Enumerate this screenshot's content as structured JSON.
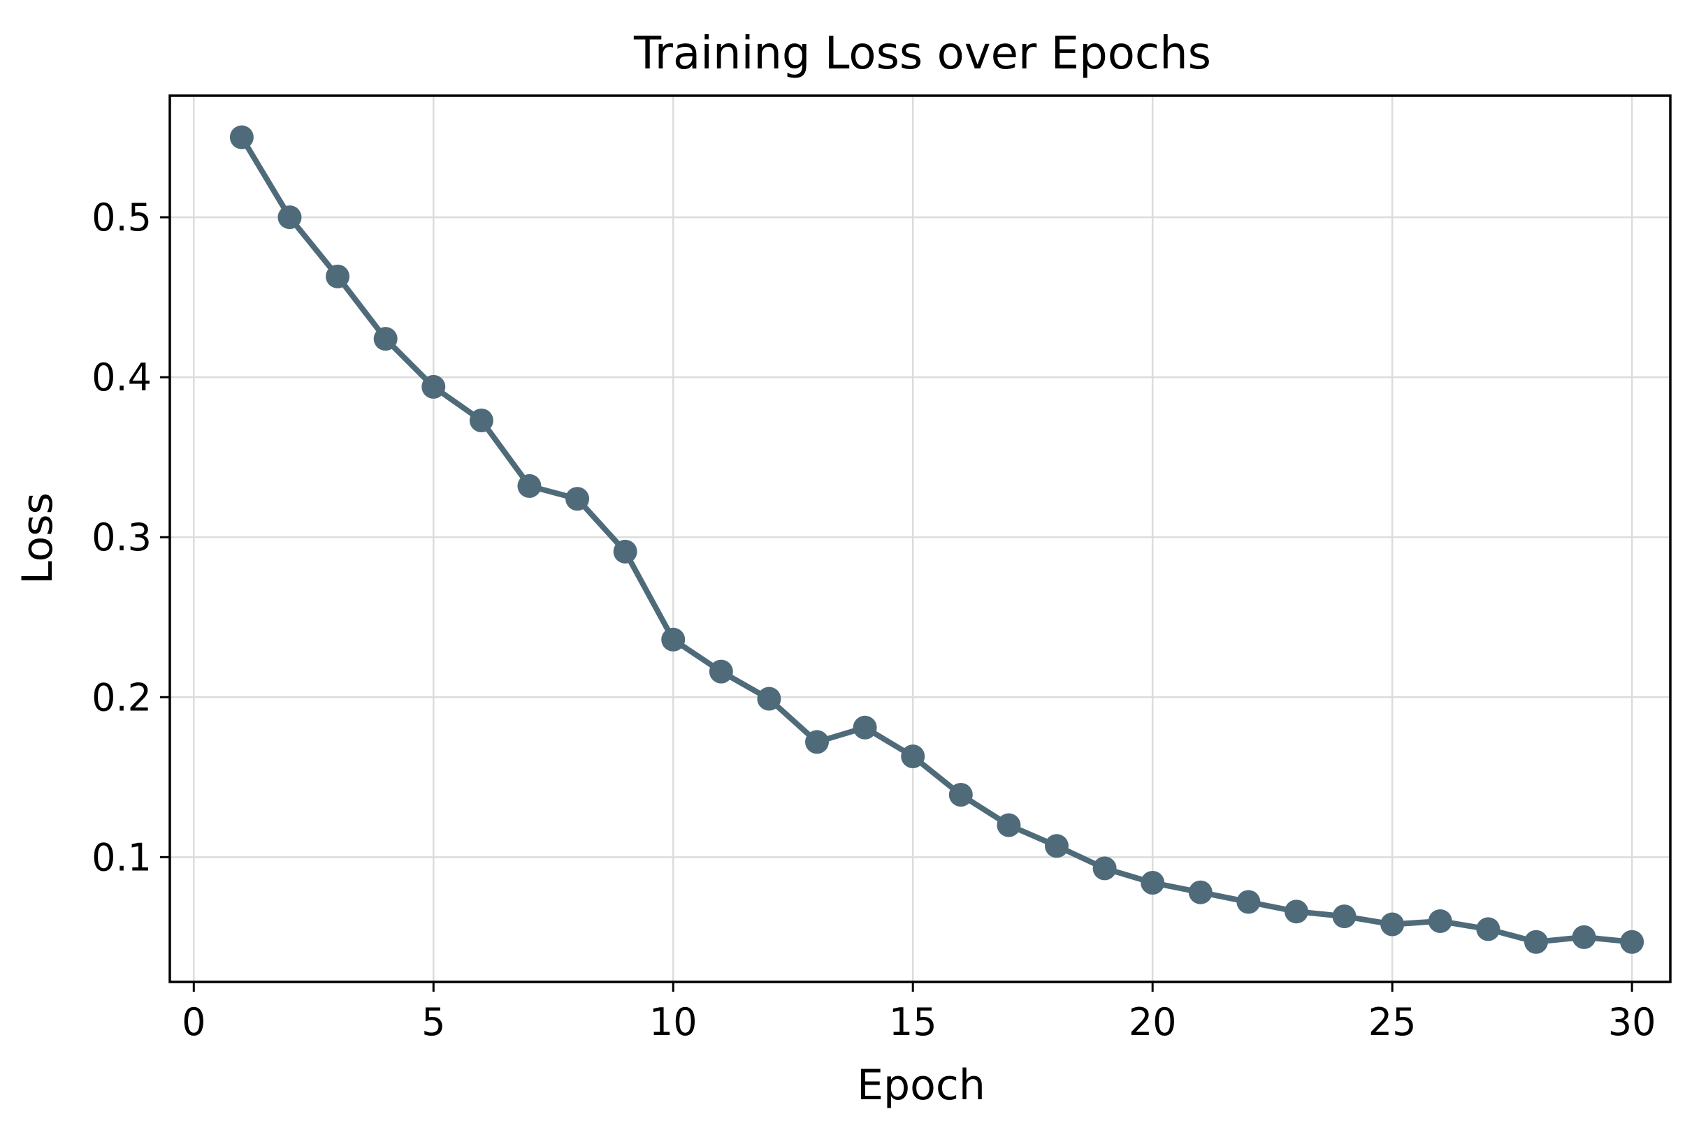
{
  "chart_data": {
    "type": "line",
    "title": "Training Loss over Epochs",
    "xlabel": "Epoch",
    "ylabel": "Loss",
    "xlim": [
      -0.5,
      30.8
    ],
    "ylim": [
      0.022,
      0.576
    ],
    "x_ticks": [
      0,
      5,
      10,
      15,
      20,
      25,
      30
    ],
    "x_tick_labels": [
      "0",
      "5",
      "10",
      "15",
      "20",
      "25",
      "30"
    ],
    "y_ticks": [
      0.1,
      0.2,
      0.3,
      0.4,
      0.5
    ],
    "y_tick_labels": [
      "0.1",
      "0.2",
      "0.3",
      "0.4",
      "0.5"
    ],
    "grid": true,
    "legend": "none",
    "color": "#4f6b7a",
    "series": [
      {
        "x": [
          1,
          2,
          3,
          4,
          5,
          6,
          7,
          8,
          9,
          10,
          11,
          12,
          13,
          14,
          15,
          16,
          17,
          18,
          19,
          20,
          21,
          22,
          23,
          24,
          25,
          26,
          27,
          28,
          29,
          30
        ],
        "values": [
          0.55,
          0.5,
          0.463,
          0.424,
          0.394,
          0.373,
          0.332,
          0.324,
          0.291,
          0.236,
          0.216,
          0.199,
          0.172,
          0.181,
          0.163,
          0.139,
          0.12,
          0.107,
          0.093,
          0.084,
          0.078,
          0.072,
          0.066,
          0.063,
          0.058,
          0.06,
          0.055,
          0.047,
          0.05,
          0.047
        ]
      }
    ]
  }
}
